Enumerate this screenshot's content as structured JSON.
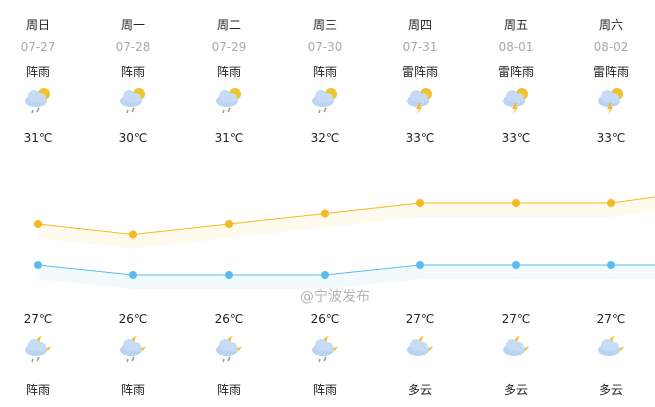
{
  "days": [
    {
      "weekday": "周日",
      "date": "07-27",
      "day_weather": "阵雨",
      "day_icon": "shower-day-icon",
      "high": "31℃",
      "low": "27℃",
      "night_icon": "shower-night-icon",
      "night_weather": "阵雨",
      "high_v": 31,
      "low_v": 27
    },
    {
      "weekday": "周一",
      "date": "07-28",
      "day_weather": "阵雨",
      "day_icon": "shower-day-icon",
      "high": "30℃",
      "low": "26℃",
      "night_icon": "shower-night-icon",
      "night_weather": "阵雨",
      "high_v": 30,
      "low_v": 26
    },
    {
      "weekday": "周二",
      "date": "07-29",
      "day_weather": "阵雨",
      "day_icon": "shower-day-icon",
      "high": "31℃",
      "low": "26℃",
      "night_icon": "shower-night-icon",
      "night_weather": "阵雨",
      "high_v": 31,
      "low_v": 26
    },
    {
      "weekday": "周三",
      "date": "07-30",
      "day_weather": "阵雨",
      "day_icon": "shower-day-icon",
      "high": "32℃",
      "low": "26℃",
      "night_icon": "shower-night-icon",
      "night_weather": "阵雨",
      "high_v": 32,
      "low_v": 26
    },
    {
      "weekday": "周四",
      "date": "07-31",
      "day_weather": "雷阵雨",
      "day_icon": "thunderstorm-icon",
      "high": "33℃",
      "low": "27℃",
      "night_icon": "cloudy-night-icon",
      "night_weather": "多云",
      "high_v": 33,
      "low_v": 27
    },
    {
      "weekday": "周五",
      "date": "08-01",
      "day_weather": "雷阵雨",
      "day_icon": "thunderstorm-icon",
      "high": "33℃",
      "low": "27℃",
      "night_icon": "cloudy-night-icon",
      "night_weather": "多云",
      "high_v": 33,
      "low_v": 27
    },
    {
      "weekday": "周六",
      "date": "08-02",
      "day_weather": "雷阵雨",
      "day_icon": "thunderstorm-icon",
      "high": "33℃",
      "low": "27℃",
      "night_icon": "cloudy-night-icon",
      "night_weather": "多云",
      "high_v": 33,
      "low_v": 27
    }
  ],
  "colors": {
    "high_line": "#f5b921",
    "low_line": "#5bbcec"
  },
  "watermark": "@宁波发布"
}
